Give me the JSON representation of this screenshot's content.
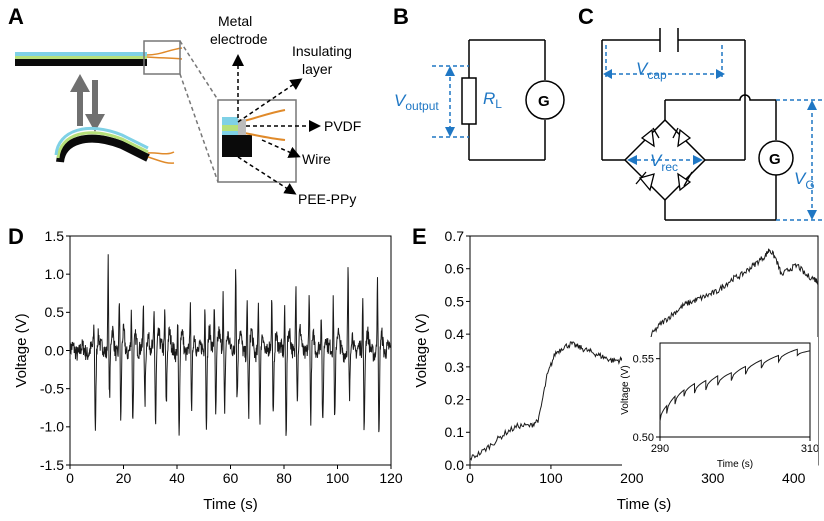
{
  "panels": {
    "A": {
      "letter": "A",
      "labels": {
        "metal_electrode_1": "Metal",
        "metal_electrode_2": "electrode",
        "insulating_1": "Insulating",
        "insulating_2": "layer",
        "pvdf": "PVDF",
        "wire": "Wire",
        "pee_ppy": "PEE-PPy"
      }
    },
    "B": {
      "letter": "B",
      "v_output": "V",
      "v_output_sub": "output",
      "r_load": "R",
      "r_load_sub": "L",
      "gen": "G"
    },
    "C": {
      "letter": "C",
      "v_cap": "V",
      "v_cap_sub": "cap",
      "v_rec": "V",
      "v_rec_sub": "rec",
      "v_g": "V",
      "v_g_sub": "G",
      "gen": "G"
    },
    "D": {
      "letter": "D"
    },
    "E": {
      "letter": "E"
    }
  },
  "colors": {
    "annotation_blue": "#1f77c4",
    "trace": "#1a1a1a",
    "wire_orange": "#e08a2a",
    "layer_green": "#b7e07a",
    "layer_blue": "#7fd1e6",
    "electrode_black": "#0a0a0a"
  },
  "chart_data": [
    {
      "type": "line",
      "panel": "D",
      "xlabel": "Time (s)",
      "ylabel": "Voltage (V)",
      "xlim": [
        0,
        120
      ],
      "ylim": [
        -1.5,
        1.5
      ],
      "xticks": [
        0,
        20,
        40,
        60,
        80,
        100,
        120
      ],
      "yticks": [
        -1.5,
        -1.0,
        -0.5,
        0.0,
        0.5,
        1.0,
        1.5
      ],
      "ytick_labels": [
        "-1.5",
        "-1.0",
        "-0.5",
        "0.0",
        "0.5",
        "1.0",
        "1.5"
      ],
      "grid": false,
      "spike_pairs": [
        [
          9.5,
          0.3,
          -1.02
        ],
        [
          14.8,
          1.25,
          -0.62
        ],
        [
          19.0,
          0.72,
          -0.95
        ],
        [
          23.5,
          0.5,
          -0.98
        ],
        [
          28.0,
          0.62,
          -0.7
        ],
        [
          32.0,
          0.5,
          -0.95
        ],
        [
          36.0,
          0.55,
          -0.7
        ],
        [
          40.8,
          0.35,
          -1.18
        ],
        [
          45.5,
          0.55,
          -0.8
        ],
        [
          51.0,
          0.65,
          -0.9
        ],
        [
          54.5,
          0.68,
          -0.8
        ],
        [
          57.8,
          0.72,
          -0.75
        ],
        [
          62.5,
          1.22,
          -0.58
        ],
        [
          66.8,
          0.65,
          -0.88
        ],
        [
          71.0,
          0.6,
          -0.95
        ],
        [
          76.0,
          0.68,
          -0.88
        ],
        [
          80.8,
          0.58,
          -1.02
        ],
        [
          85.0,
          1.0,
          -0.6
        ],
        [
          90.0,
          0.7,
          -0.93
        ],
        [
          94.5,
          0.5,
          -1.0
        ],
        [
          99.0,
          0.7,
          -0.88
        ],
        [
          104.5,
          1.02,
          -0.7
        ],
        [
          110.0,
          0.7,
          -0.98
        ],
        [
          115.5,
          1.02,
          -1.22
        ]
      ]
    },
    {
      "type": "line",
      "panel": "E",
      "xlabel": "Time (s)",
      "ylabel": "Voltage (V)",
      "xlim": [
        0,
        430
      ],
      "ylim": [
        0,
        0.7
      ],
      "xticks": [
        0,
        100,
        200,
        300,
        400
      ],
      "yticks": [
        0.0,
        0.1,
        0.2,
        0.3,
        0.4,
        0.5,
        0.6,
        0.7
      ],
      "ytick_labels": [
        "0.0",
        "0.1",
        "0.2",
        "0.3",
        "0.4",
        "0.5",
        "0.6",
        "0.7"
      ],
      "grid": false,
      "x": [
        0,
        15,
        30,
        45,
        60,
        75,
        85,
        95,
        105,
        115,
        125,
        135,
        145,
        155,
        165,
        175,
        185,
        195,
        205,
        215,
        225,
        235,
        245,
        255,
        265,
        275,
        285,
        295,
        305,
        315,
        325,
        335,
        345,
        355,
        365,
        370,
        378,
        385,
        395,
        405,
        415,
        425,
        430
      ],
      "y": [
        0.02,
        0.04,
        0.07,
        0.1,
        0.12,
        0.12,
        0.14,
        0.27,
        0.34,
        0.36,
        0.37,
        0.36,
        0.35,
        0.34,
        0.33,
        0.32,
        0.32,
        0.33,
        0.35,
        0.35,
        0.4,
        0.43,
        0.45,
        0.47,
        0.49,
        0.5,
        0.51,
        0.52,
        0.53,
        0.55,
        0.57,
        0.58,
        0.6,
        0.62,
        0.64,
        0.66,
        0.63,
        0.58,
        0.6,
        0.61,
        0.58,
        0.57,
        0.56
      ]
    },
    {
      "type": "line",
      "panel": "E-inset",
      "xlabel": "Time (s)",
      "ylabel": "Voltage (V)",
      "xlim": [
        290,
        310
      ],
      "ylim": [
        0.5,
        0.56
      ],
      "xticks": [
        290,
        310
      ],
      "yticks": [
        0.5,
        0.55
      ],
      "ytick_labels": [
        "0.50",
        "0.55"
      ],
      "sawtooth": [
        [
          290.0,
          0.51,
          290.9,
          0.52
        ],
        [
          290.9,
          0.515,
          292.0,
          0.526
        ],
        [
          292.0,
          0.521,
          293.2,
          0.53
        ],
        [
          293.2,
          0.526,
          294.6,
          0.534
        ],
        [
          294.6,
          0.528,
          296.1,
          0.536
        ],
        [
          296.1,
          0.53,
          297.7,
          0.539
        ],
        [
          297.7,
          0.533,
          299.5,
          0.541
        ],
        [
          299.5,
          0.536,
          301.4,
          0.545
        ],
        [
          301.4,
          0.54,
          303.5,
          0.549
        ],
        [
          303.5,
          0.544,
          305.8,
          0.552
        ],
        [
          305.8,
          0.548,
          308.3,
          0.556
        ],
        [
          308.3,
          0.552,
          310.0,
          0.555
        ]
      ]
    }
  ]
}
